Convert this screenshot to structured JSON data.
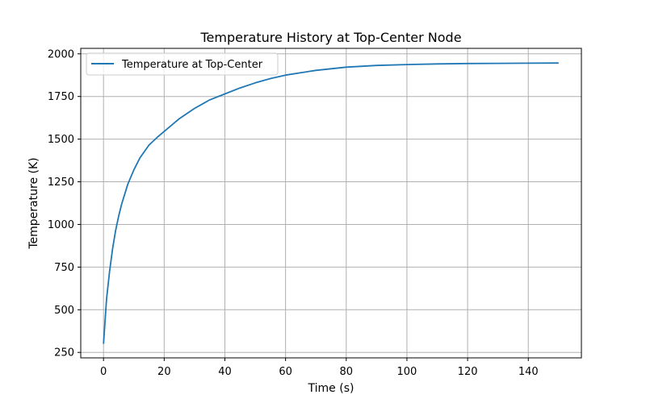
{
  "chart_data": {
    "type": "line",
    "title": "Temperature History at Top-Center Node",
    "xlabel": "Time (s)",
    "ylabel": "Temperature (K)",
    "xlim": [
      -7.5,
      157.5
    ],
    "ylim": [
      218,
      2032
    ],
    "xticks": [
      0,
      20,
      40,
      60,
      80,
      100,
      120,
      140
    ],
    "yticks": [
      250,
      500,
      750,
      1000,
      1250,
      1500,
      1750,
      2000
    ],
    "grid": true,
    "legend_position": "upper-left",
    "series": [
      {
        "name": "Temperature at Top-Center",
        "color": "#1f77b4",
        "x": [
          0,
          1,
          2,
          3,
          4,
          5,
          6,
          8,
          10,
          12,
          15,
          18,
          20,
          25,
          30,
          35,
          40,
          45,
          50,
          55,
          60,
          70,
          80,
          90,
          100,
          110,
          120,
          130,
          140,
          150
        ],
        "y": [
          300,
          560,
          725,
          860,
          965,
          1050,
          1120,
          1235,
          1320,
          1390,
          1465,
          1515,
          1545,
          1620,
          1680,
          1730,
          1765,
          1800,
          1830,
          1855,
          1875,
          1903,
          1922,
          1932,
          1937,
          1941,
          1943,
          1944,
          1945,
          1946
        ]
      }
    ]
  }
}
